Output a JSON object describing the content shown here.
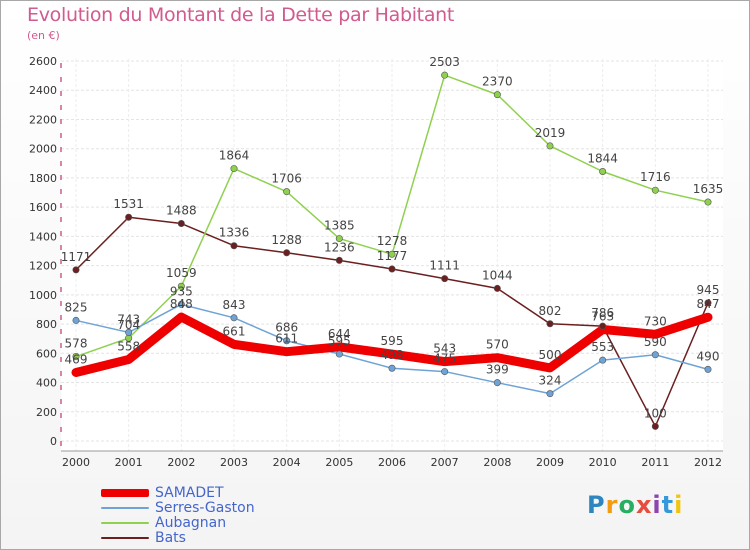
{
  "title": "Evolution du Montant de la Dette par Habitant",
  "subtitle": "(en €)",
  "brand": {
    "text": "Proxiti",
    "letter_colors": [
      "#2e86c1",
      "#f39c12",
      "#27ae60",
      "#e74c3c",
      "#8e44ad",
      "#3498db",
      "#f1c40f"
    ]
  },
  "chart_data": {
    "type": "line",
    "title": "Evolution du Montant de la Dette par Habitant",
    "subtitle": "(en €)",
    "xlabel": "",
    "ylabel": "",
    "x": [
      "2000",
      "2001",
      "2002",
      "2003",
      "2004",
      "2005",
      "2006",
      "2007",
      "2008",
      "2009",
      "2010",
      "2011",
      "2012"
    ],
    "ylim": [
      0,
      2600
    ],
    "yticks": [
      0,
      200,
      400,
      600,
      800,
      1000,
      1200,
      1400,
      1600,
      1800,
      2000,
      2200,
      2400,
      2600
    ],
    "grid": true,
    "legend_position": "bottom-left",
    "series": [
      {
        "name": "Bats",
        "color": "#6b1f1f",
        "values": [
          1171,
          1531,
          1488,
          1336,
          1288,
          1236,
          1177,
          1111,
          1044,
          802,
          786,
          100,
          945
        ],
        "labels": [
          "1171",
          "1531",
          "1488",
          "1336",
          "1288",
          "1236",
          "1177",
          "1111",
          "1044",
          "802",
          "786",
          "100",
          "945"
        ]
      },
      {
        "name": "Aubagnan",
        "color": "#8fd14f",
        "values": [
          578,
          704,
          1059,
          1864,
          1706,
          1385,
          1278,
          2503,
          2370,
          2019,
          1844,
          1716,
          1635
        ],
        "labels": [
          "578",
          "704",
          "1059",
          "1864",
          "1706",
          "1385",
          "1278",
          "2503",
          "2370",
          "2019",
          "1844",
          "1716",
          "1635"
        ]
      },
      {
        "name": "Serres-Gaston",
        "color": "#6fa3d6",
        "values": [
          825,
          743,
          935,
          843,
          686,
          595,
          498,
          475,
          399,
          324,
          553,
          590,
          490
        ],
        "labels": [
          "825",
          "743",
          "935",
          "843",
          "686",
          "595",
          "498",
          "475",
          "399",
          "324",
          "553",
          "590",
          "490"
        ]
      },
      {
        "name": "SAMADET",
        "color": "#ee0000",
        "values": [
          469,
          558,
          848,
          661,
          611,
          644,
          595,
          543,
          570,
          500,
          763,
          730,
          847
        ],
        "labels": [
          "469",
          "558",
          "848",
          "661",
          "611",
          "644",
          "595",
          "543",
          "570",
          "500",
          "763",
          "730",
          "847"
        ]
      }
    ],
    "legend": [
      "SAMADET",
      "Serres-Gaston",
      "Aubagnan",
      "Bats"
    ]
  }
}
